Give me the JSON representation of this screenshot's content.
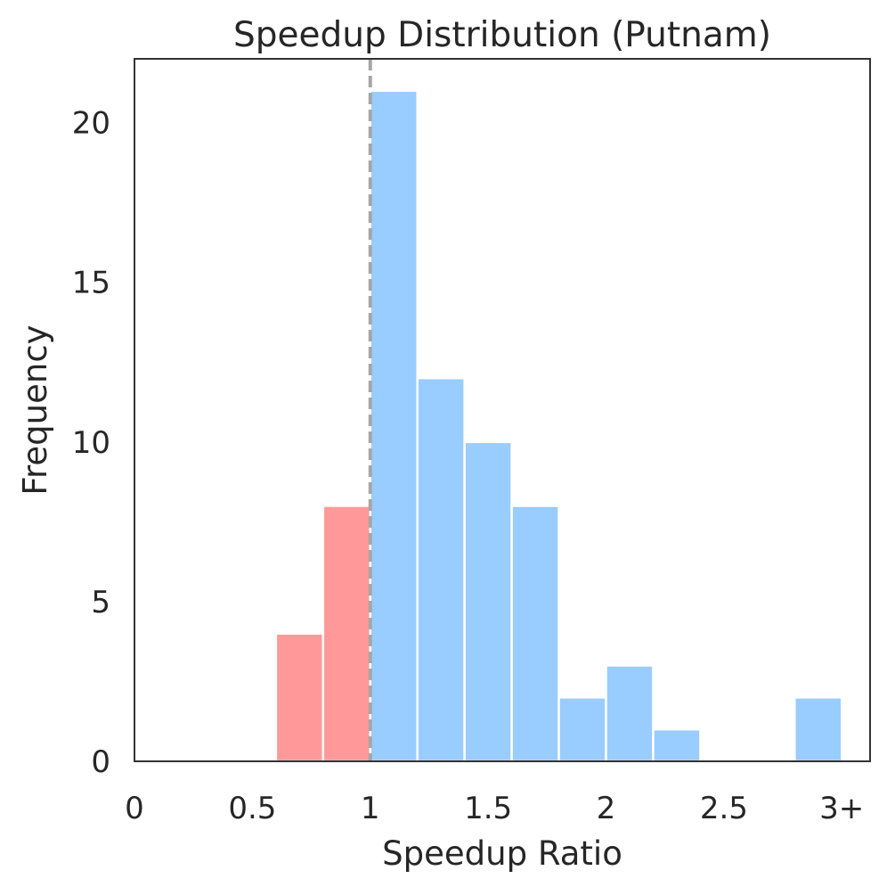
{
  "chart_data": {
    "type": "bar",
    "title": "Speedup Distribution (Putnam)",
    "xlabel": "Speedup Ratio",
    "ylabel": "Frequency",
    "xlim": [
      0,
      3.12
    ],
    "ylim": [
      0,
      22
    ],
    "bin_width": 0.2,
    "xticks": [
      {
        "value": 0,
        "label": "0"
      },
      {
        "value": 0.5,
        "label": "0.5"
      },
      {
        "value": 1,
        "label": "1"
      },
      {
        "value": 1.5,
        "label": "1.5"
      },
      {
        "value": 2,
        "label": "2"
      },
      {
        "value": 2.5,
        "label": "2.5"
      },
      {
        "value": 3,
        "label": "3+"
      }
    ],
    "yticks": [
      {
        "value": 0,
        "label": "0"
      },
      {
        "value": 5,
        "label": "5"
      },
      {
        "value": 10,
        "label": "10"
      },
      {
        "value": 15,
        "label": "15"
      },
      {
        "value": 20,
        "label": "20"
      }
    ],
    "reference_line": {
      "x": 1,
      "style": "dashed",
      "color": "#a6a6a6"
    },
    "colors": {
      "below_one": "#ff9999",
      "above_one": "#99ccff"
    },
    "bins": [
      {
        "x0": 0.6,
        "x1": 0.8,
        "count": 4,
        "group": "below_one"
      },
      {
        "x0": 0.8,
        "x1": 1.0,
        "count": 8,
        "group": "below_one"
      },
      {
        "x0": 1.0,
        "x1": 1.2,
        "count": 21,
        "group": "above_one"
      },
      {
        "x0": 1.2,
        "x1": 1.4,
        "count": 12,
        "group": "above_one"
      },
      {
        "x0": 1.4,
        "x1": 1.6,
        "count": 10,
        "group": "above_one"
      },
      {
        "x0": 1.6,
        "x1": 1.8,
        "count": 8,
        "group": "above_one"
      },
      {
        "x0": 1.8,
        "x1": 2.0,
        "count": 2,
        "group": "above_one"
      },
      {
        "x0": 2.0,
        "x1": 2.2,
        "count": 3,
        "group": "above_one"
      },
      {
        "x0": 2.2,
        "x1": 2.4,
        "count": 1,
        "group": "above_one"
      },
      {
        "x0": 2.8,
        "x1": 3.0,
        "count": 2,
        "group": "above_one"
      }
    ],
    "grid": false,
    "legend": "none"
  }
}
